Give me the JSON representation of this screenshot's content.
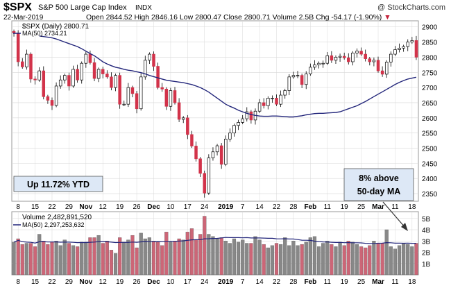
{
  "header": {
    "symbol": "$SPX",
    "name": "S&P 500 Large Cap Index",
    "exchange": "INDX",
    "watermark": "@ StockCharts.com",
    "date": "22-Mar-2019",
    "open_label": "Open",
    "open": "2844.52",
    "high_label": "High",
    "high": "2846.16",
    "low_label": "Low",
    "low": "2800.47",
    "close_label": "Close",
    "close": "2800.71",
    "volume_label": "Volume",
    "volume": "2.5B",
    "chg_label": "Chg",
    "chg": "-54.17 (-1.90%)",
    "chg_arrow": "▼"
  },
  "legends": {
    "price": "$SPX (Daily) 2800.71",
    "ma": "MA(50) 2734.21",
    "volume": "Volume 2,482,891,520",
    "vol_ma": "MA(50) 2,297,253,632"
  },
  "annotations": {
    "ytd": "Up 11.72% YTD",
    "ma_line1": "8% above",
    "ma_line2": "50-day MA"
  },
  "chart_data": [
    {
      "type": "candlestick",
      "title": "$SPX (Daily)",
      "ylim": [
        2325,
        2920
      ],
      "y_ticks": [
        2350,
        2400,
        2450,
        2500,
        2550,
        2600,
        2650,
        2700,
        2750,
        2800,
        2850,
        2900
      ],
      "x_tick_labels": [
        "8",
        "15",
        "22",
        "29",
        "Nov",
        "12",
        "19",
        "26",
        "Dec",
        "10",
        "17",
        "24",
        "2019",
        "7",
        "14",
        "22",
        "28",
        "Feb",
        "11",
        "19",
        "25",
        "Mar",
        "11",
        "18"
      ],
      "closes": [
        2880,
        2785,
        2768,
        2810,
        2728,
        2725,
        2755,
        2670,
        2658,
        2641,
        2705,
        2725,
        2740,
        2705,
        2760,
        2725,
        2780,
        2810,
        2782,
        2730,
        2760,
        2745,
        2735,
        2700,
        2740,
        2645,
        2645,
        2700,
        2680,
        2630,
        2735,
        2790,
        2810,
        2770,
        2700,
        2695,
        2638,
        2690,
        2650,
        2595,
        2600,
        2545,
        2507,
        2465,
        2417,
        2352,
        2468,
        2488,
        2508,
        2447,
        2530,
        2550,
        2575,
        2585,
        2597,
        2620,
        2593,
        2622,
        2650,
        2640,
        2665,
        2665,
        2645,
        2675,
        2690,
        2735,
        2740,
        2740,
        2710,
        2745,
        2767,
        2775,
        2780,
        2780,
        2805,
        2790,
        2800,
        2803,
        2798,
        2785,
        2814,
        2820,
        2810,
        2795,
        2785,
        2790,
        2755,
        2744,
        2784,
        2810,
        2825,
        2830,
        2835,
        2850,
        2855,
        2800
      ],
      "ma50": [
        2870,
        2868,
        2866,
        2864,
        2860,
        2855,
        2850,
        2845,
        2840,
        2835,
        2828,
        2820,
        2812,
        2805,
        2795,
        2785,
        2778,
        2772,
        2767,
        2764,
        2760,
        2757,
        2755,
        2752,
        2749,
        2745,
        2740,
        2736,
        2732,
        2728,
        2724,
        2722,
        2720,
        2718,
        2716,
        2713,
        2710,
        2705,
        2700,
        2693,
        2685,
        2675,
        2665,
        2655,
        2645,
        2638,
        2632,
        2625,
        2620,
        2615,
        2611,
        2608,
        2606,
        2605,
        2605,
        2606,
        2606,
        2605,
        2604,
        2603,
        2603,
        2605,
        2607,
        2610,
        2612,
        2614,
        2615,
        2615,
        2616,
        2617,
        2618,
        2620,
        2625,
        2630,
        2635,
        2640,
        2647,
        2654,
        2662,
        2670,
        2678,
        2686,
        2694,
        2702,
        2710,
        2717,
        2723,
        2728,
        2731,
        2734
      ],
      "series": [
        {
          "name": "$SPX (Daily)",
          "last": 2800.71
        },
        {
          "name": "MA(50)",
          "last": 2734.21
        }
      ]
    },
    {
      "type": "bar",
      "title": "Volume",
      "ylim": [
        0,
        5.6
      ],
      "y_ticks": [
        1,
        2,
        3,
        4,
        5
      ],
      "y_tick_labels": [
        "1B",
        "2B",
        "3B",
        "4B",
        "5B"
      ],
      "values": [
        2.9,
        3.2,
        2.7,
        2.8,
        2.8,
        2.5,
        3.6,
        3.0,
        2.7,
        2.9,
        3.0,
        2.6,
        3.1,
        2.8,
        2.6,
        2.5,
        2.9,
        2.9,
        3.3,
        3.3,
        3.5,
        2.8,
        3.0,
        2.2,
        1.9,
        3.3,
        2.9,
        3.1,
        3.5,
        2.4,
        3.7,
        3.2,
        3.3,
        3.0,
        2.9,
        2.6,
        3.8,
        2.9,
        3.0,
        3.2,
        3.1,
        3.8,
        4.1,
        3.1,
        3.6,
        5.2,
        3.6,
        3.4,
        3.2,
        3.3,
        3.0,
        2.8,
        3.2,
        2.9,
        3.1,
        2.8,
        2.8,
        3.4,
        3.1,
        2.7,
        2.4,
        2.6,
        2.8,
        2.7,
        3.3,
        2.6,
        3.0,
        2.6,
        2.7,
        2.9,
        3.3,
        3.4,
        2.5,
        2.8,
        3.0,
        2.7,
        2.5,
        2.9,
        2.6,
        3.0,
        2.9,
        2.7,
        2.5,
        2.4,
        2.6,
        3.0,
        2.8,
        2.8,
        4.0,
        2.5,
        2.3,
        2.6,
        2.8,
        2.7,
        2.5,
        2.8
      ],
      "series": [
        {
          "name": "Volume",
          "last": "2,482,891,520"
        },
        {
          "name": "MA(50)",
          "last": "2,297,253,632"
        }
      ]
    }
  ],
  "colors": {
    "up": "#ffffff",
    "down": "#d2334a",
    "vol_up": "#888888",
    "vol_down": "#cc6677",
    "ma": "#22257a",
    "grid": "#d8d8d8",
    "frame": "#999999",
    "watermark": "#333333",
    "chg_text": "#c4233c"
  }
}
